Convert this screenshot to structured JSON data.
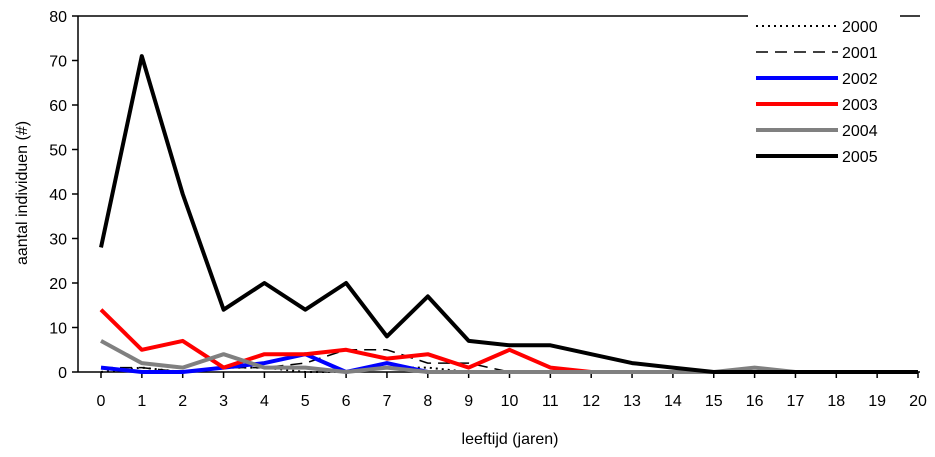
{
  "chart_data": {
    "type": "line",
    "title": "",
    "xlabel": "leeftijd (jaren)",
    "ylabel": "aantal individuen (#)",
    "x": [
      0,
      1,
      2,
      3,
      4,
      5,
      6,
      7,
      8,
      9,
      10,
      11,
      12,
      13,
      14,
      15,
      16,
      17,
      18,
      19,
      20
    ],
    "xlim": [
      0,
      20
    ],
    "ylim": [
      0,
      80
    ],
    "yticks": [
      0,
      10,
      20,
      30,
      40,
      50,
      60,
      70,
      80
    ],
    "grid": false,
    "legend_position": "top-right",
    "series": [
      {
        "name": "2000",
        "color": "#000000",
        "style": "dotted",
        "values": [
          0,
          1,
          0,
          1,
          1,
          0,
          0,
          1,
          1,
          0,
          0,
          0,
          0,
          0,
          0,
          0,
          0,
          0,
          0,
          0,
          0
        ]
      },
      {
        "name": "2001",
        "color": "#000000",
        "style": "dashed",
        "values": [
          1,
          1,
          0,
          1,
          1,
          2,
          5,
          5,
          2,
          2,
          0,
          0,
          0,
          0,
          0,
          0,
          0,
          0,
          0,
          0,
          0
        ]
      },
      {
        "name": "2002",
        "color": "#0000ff",
        "style": "solid-thick",
        "values": [
          1,
          0,
          0,
          1,
          2,
          4,
          0,
          2,
          0,
          0,
          0,
          0,
          0,
          0,
          0,
          0,
          0,
          0,
          0,
          0,
          0
        ]
      },
      {
        "name": "2003",
        "color": "#ff0000",
        "style": "solid-thick",
        "values": [
          14,
          5,
          7,
          1,
          4,
          4,
          5,
          3,
          4,
          1,
          5,
          1,
          0,
          0,
          0,
          0,
          0,
          0,
          0,
          0,
          0
        ]
      },
      {
        "name": "2004",
        "color": "#808080",
        "style": "solid-thick",
        "values": [
          7,
          2,
          1,
          4,
          1,
          1,
          0,
          1,
          0,
          0,
          0,
          0,
          0,
          0,
          0,
          0,
          1,
          0,
          0,
          0,
          0
        ]
      },
      {
        "name": "2005",
        "color": "#000000",
        "style": "solid-thick",
        "values": [
          28,
          71,
          40,
          14,
          20,
          14,
          20,
          8,
          17,
          7,
          6,
          6,
          4,
          2,
          1,
          0,
          0,
          0,
          0,
          0,
          0
        ]
      }
    ]
  }
}
